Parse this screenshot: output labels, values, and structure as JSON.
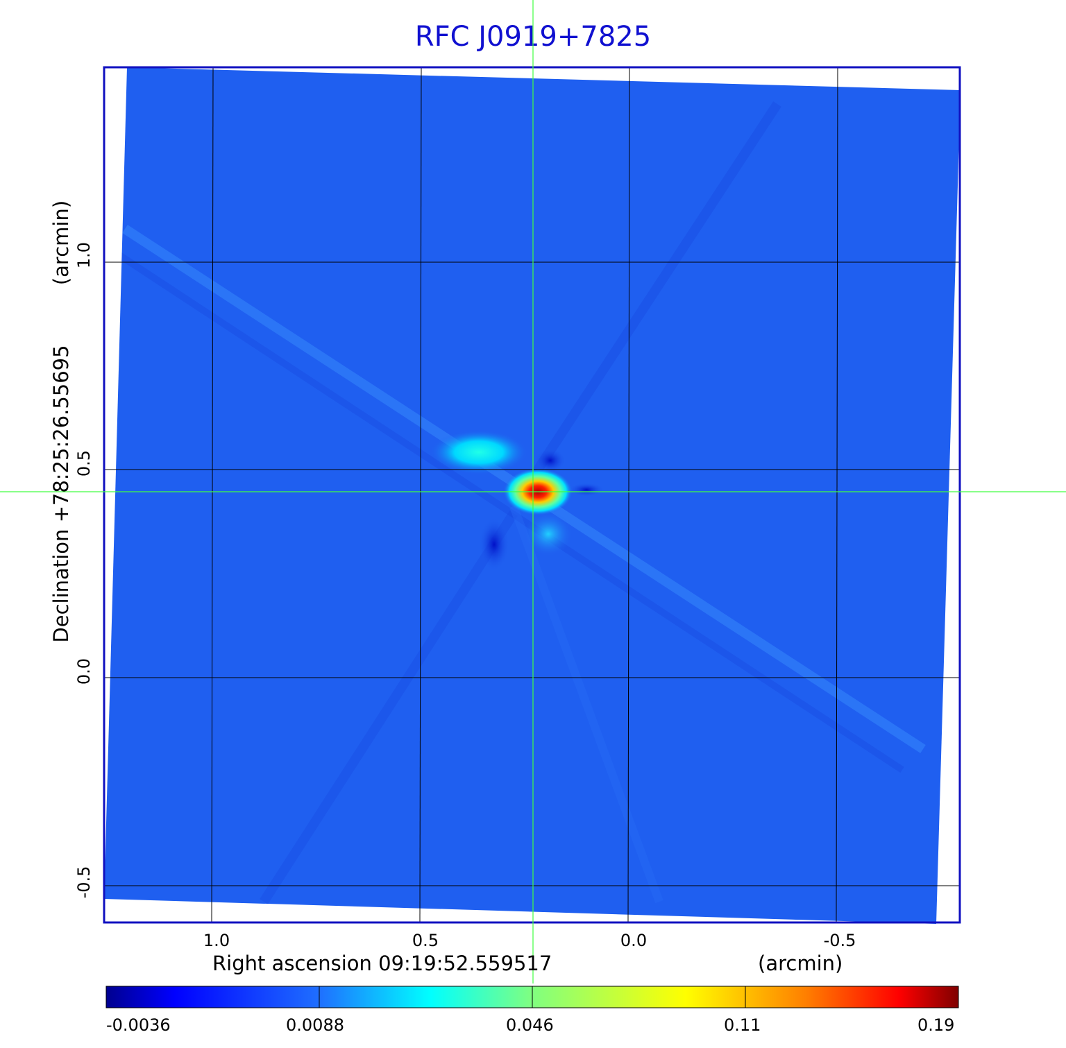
{
  "title": "RFC J0919+7825",
  "x_axis": {
    "label": "Right ascension  09:19:52.559517",
    "unit": "(arcmin)",
    "ticks": [
      "1.0",
      "0.5",
      "0.0",
      "-0.5"
    ]
  },
  "y_axis": {
    "label": "Declination  +78:25:26.55695",
    "unit": "(arcmin)",
    "ticks": [
      "1.0",
      "0.5",
      "0.0",
      "-0.5"
    ]
  },
  "colorbar": {
    "ticks": [
      "-0.0036",
      "0.0088",
      "0.046",
      "0.11",
      "0.19"
    ],
    "colormap": [
      "#00008f",
      "#0000ff",
      "#1f6fff",
      "#00ffff",
      "#80ff80",
      "#ffff00",
      "#ff8000",
      "#ff0000",
      "#800000"
    ]
  },
  "colors": {
    "title": "#1010d0",
    "frame": "#1010c0",
    "background_field": "#1f5ff0",
    "crosshair": "#40ff40",
    "grid": "#000000"
  }
}
